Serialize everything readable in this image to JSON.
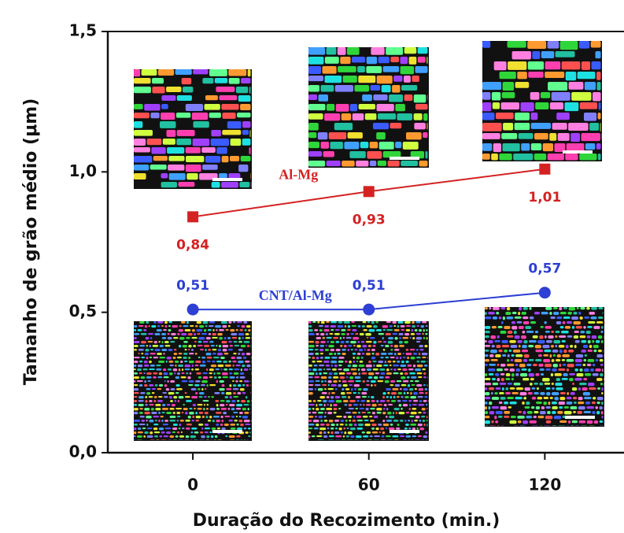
{
  "chart_data": {
    "type": "line",
    "x_label": "Duração do Recozimento (min.)",
    "y_label": "Tamanho de grão médio (μm)",
    "x": [
      0,
      60,
      120
    ],
    "xlim": [
      -29,
      147
    ],
    "xticks": [
      0,
      60,
      120
    ],
    "ylim": [
      0,
      1.5
    ],
    "yticks": [
      {
        "value": 0,
        "label": "0,0"
      },
      {
        "value": 0.5,
        "label": "0,5"
      },
      {
        "value": 1.0,
        "label": "1,0"
      },
      {
        "value": 1.5,
        "label": "1,5"
      }
    ],
    "series": [
      {
        "name": "Al-Mg",
        "color": "#d42222",
        "marker": "square",
        "values": [
          0.84,
          0.93,
          1.01
        ],
        "value_labels": [
          "0,84",
          "0,93",
          "1,01"
        ]
      },
      {
        "name": "CNT/Al-Mg",
        "color": "#2d3fd4",
        "marker": "circle",
        "values": [
          0.51,
          0.51,
          0.57
        ],
        "value_labels": [
          "0,51",
          "0,51",
          "0,57"
        ]
      }
    ]
  }
}
